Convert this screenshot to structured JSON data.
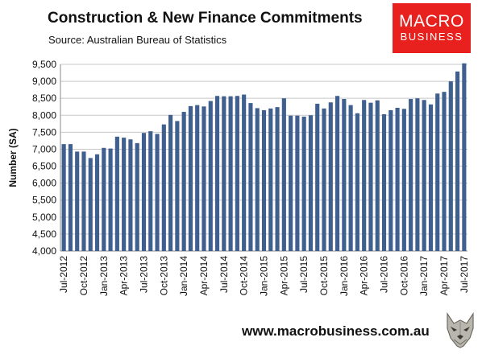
{
  "header": {
    "title": "Construction & New Finance Commitments",
    "subtitle": "Source: Australian Bureau of Statistics"
  },
  "logo": {
    "line1": "MACRO",
    "line2": "BUSINESS",
    "color": "#e8211f"
  },
  "footer": {
    "website": "www.macrobusiness.com.au",
    "mascot_icon": "wolf-icon"
  },
  "chart_data": {
    "type": "bar",
    "ylabel": "Number (SA)",
    "xlabel": "",
    "ylim": [
      4000,
      9500
    ],
    "yticks": [
      4000,
      4500,
      5000,
      5500,
      6000,
      6500,
      7000,
      7500,
      8000,
      8500,
      9000,
      9500
    ],
    "grid": true,
    "bar_color": "#3f5f8f",
    "categories": [
      "Jul-2012",
      "Aug-2012",
      "Sep-2012",
      "Oct-2012",
      "Nov-2012",
      "Dec-2012",
      "Jan-2013",
      "Feb-2013",
      "Mar-2013",
      "Apr-2013",
      "May-2013",
      "Jun-2013",
      "Jul-2013",
      "Aug-2013",
      "Sep-2013",
      "Oct-2013",
      "Nov-2013",
      "Dec-2013",
      "Jan-2014",
      "Feb-2014",
      "Mar-2014",
      "Apr-2014",
      "May-2014",
      "Jun-2014",
      "Jul-2014",
      "Aug-2014",
      "Sep-2014",
      "Oct-2014",
      "Nov-2014",
      "Dec-2014",
      "Jan-2015",
      "Feb-2015",
      "Mar-2015",
      "Apr-2015",
      "May-2015",
      "Jun-2015",
      "Jul-2015",
      "Aug-2015",
      "Sep-2015",
      "Oct-2015",
      "Nov-2015",
      "Dec-2015",
      "Jan-2016",
      "Feb-2016",
      "Mar-2016",
      "Apr-2016",
      "May-2016",
      "Jun-2016",
      "Jul-2016",
      "Aug-2016",
      "Sep-2016",
      "Oct-2016",
      "Nov-2016",
      "Dec-2016",
      "Jan-2017",
      "Feb-2017",
      "Mar-2017",
      "Apr-2017",
      "May-2017",
      "Jun-2017",
      "Jul-2017"
    ],
    "tick_labels": [
      "Jul-2012",
      "Oct-2012",
      "Jan-2013",
      "Apr-2013",
      "Jul-2013",
      "Oct-2013",
      "Jan-2014",
      "Apr-2014",
      "Jul-2014",
      "Oct-2014",
      "Jan-2015",
      "Apr-2015",
      "Jul-2015",
      "Oct-2015",
      "Jan-2016",
      "Apr-2016",
      "Jul-2016",
      "Oct-2016",
      "Jan-2017",
      "Apr-2017",
      "Jul-2017"
    ],
    "values": [
      7150,
      7150,
      6930,
      6930,
      6740,
      6850,
      7040,
      7020,
      7370,
      7340,
      7290,
      7180,
      7480,
      7530,
      7450,
      7730,
      8010,
      7830,
      8100,
      8270,
      8300,
      8260,
      8420,
      8570,
      8560,
      8560,
      8570,
      8610,
      8360,
      8210,
      8150,
      8200,
      8240,
      8500,
      7990,
      7990,
      7960,
      8000,
      8340,
      8200,
      8380,
      8570,
      8480,
      8300,
      8060,
      8450,
      8370,
      8440,
      8030,
      8150,
      8220,
      8190,
      8480,
      8500,
      8450,
      8320,
      8640,
      8690,
      9000,
      9290,
      9530
    ]
  }
}
